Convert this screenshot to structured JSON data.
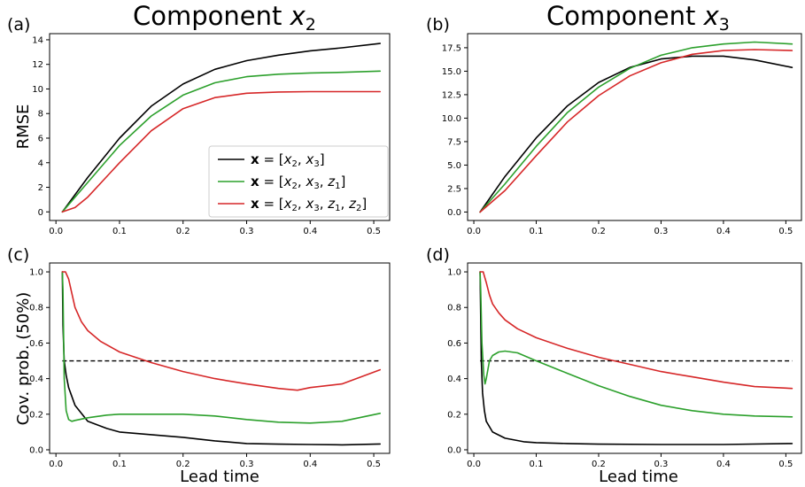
{
  "legend": {
    "entries": [
      {
        "label": "x = [x2, x3]",
        "color": "#000000"
      },
      {
        "label": "x = [x2, x3, z1]",
        "color": "#2ca02c"
      },
      {
        "label": "x = [x2, x3, z1, z2]",
        "color": "#d62728"
      }
    ]
  },
  "chart_data": [
    {
      "panel": "(a)",
      "type": "line",
      "title": "Component x2",
      "xlabel": "",
      "ylabel": "RMSE",
      "xlim": [
        -0.01,
        0.525
      ],
      "ylim": [
        -0.7,
        14.5
      ],
      "xticks": [
        0.0,
        0.1,
        0.2,
        0.3,
        0.4,
        0.5
      ],
      "xtick_labels": [
        "0.0",
        "0.1",
        "0.2",
        "0.3",
        "0.4",
        "0.5"
      ],
      "yticks": [
        0,
        2,
        4,
        6,
        8,
        10,
        12,
        14
      ],
      "ytick_labels": [
        "0",
        "2",
        "4",
        "6",
        "8",
        "10",
        "12",
        "14"
      ],
      "legend": "lower right",
      "grid": false,
      "series": [
        {
          "name": "x = [x2, x3]",
          "color": "#000000",
          "x": [
            0.01,
            0.05,
            0.1,
            0.15,
            0.2,
            0.25,
            0.3,
            0.35,
            0.4,
            0.45,
            0.51
          ],
          "y": [
            0,
            2.8,
            6.0,
            8.6,
            10.4,
            11.6,
            12.3,
            12.75,
            13.1,
            13.35,
            13.7
          ]
        },
        {
          "name": "x = [x2, x3, z1]",
          "color": "#2ca02c",
          "x": [
            0.01,
            0.05,
            0.1,
            0.15,
            0.2,
            0.25,
            0.3,
            0.35,
            0.4,
            0.45,
            0.51
          ],
          "y": [
            0,
            2.4,
            5.4,
            7.8,
            9.5,
            10.5,
            11.0,
            11.2,
            11.3,
            11.35,
            11.45
          ]
        },
        {
          "name": "x = [x2, x3, z1, z2]",
          "color": "#d62728",
          "x": [
            0.01,
            0.03,
            0.05,
            0.1,
            0.15,
            0.2,
            0.25,
            0.3,
            0.35,
            0.4,
            0.45,
            0.51
          ],
          "y": [
            0,
            0.35,
            1.2,
            4.0,
            6.6,
            8.4,
            9.3,
            9.65,
            9.75,
            9.78,
            9.78,
            9.78
          ]
        }
      ]
    },
    {
      "panel": "(b)",
      "type": "line",
      "title": "Component x3",
      "xlabel": "",
      "ylabel": "",
      "xlim": [
        -0.01,
        0.525
      ],
      "ylim": [
        -0.9,
        19.0
      ],
      "xticks": [
        0.0,
        0.1,
        0.2,
        0.3,
        0.4,
        0.5
      ],
      "xtick_labels": [
        "0.0",
        "0.1",
        "0.2",
        "0.3",
        "0.4",
        "0.5"
      ],
      "yticks": [
        0,
        2.5,
        5,
        7.5,
        10,
        12.5,
        15,
        17.5
      ],
      "ytick_labels": [
        "0.0",
        "2.5",
        "5.0",
        "7.5",
        "10.0",
        "12.5",
        "15.0",
        "17.5"
      ],
      "grid": false,
      "series": [
        {
          "name": "x = [x2, x3]",
          "color": "#000000",
          "x": [
            0.01,
            0.05,
            0.1,
            0.15,
            0.2,
            0.25,
            0.3,
            0.35,
            0.4,
            0.45,
            0.51
          ],
          "y": [
            0,
            3.8,
            7.9,
            11.3,
            13.8,
            15.4,
            16.3,
            16.6,
            16.6,
            16.2,
            15.4
          ]
        },
        {
          "name": "x = [x2, x3, z1]",
          "color": "#2ca02c",
          "x": [
            0.01,
            0.05,
            0.1,
            0.15,
            0.2,
            0.25,
            0.3,
            0.35,
            0.4,
            0.45,
            0.51
          ],
          "y": [
            0,
            3.0,
            7.0,
            10.6,
            13.3,
            15.3,
            16.7,
            17.5,
            17.9,
            18.1,
            17.9
          ]
        },
        {
          "name": "x = [x2, x3, z1, z2]",
          "color": "#d62728",
          "x": [
            0.01,
            0.05,
            0.1,
            0.15,
            0.2,
            0.25,
            0.3,
            0.35,
            0.4,
            0.45,
            0.51
          ],
          "y": [
            0,
            2.3,
            6.0,
            9.6,
            12.4,
            14.5,
            15.9,
            16.8,
            17.2,
            17.3,
            17.2
          ]
        }
      ]
    },
    {
      "panel": "(c)",
      "type": "line",
      "title": "",
      "xlabel": "Lead time",
      "ylabel": "Cov. prob. (50%)",
      "xlim": [
        -0.01,
        0.525
      ],
      "ylim": [
        -0.02,
        1.05
      ],
      "xticks": [
        0.0,
        0.1,
        0.2,
        0.3,
        0.4,
        0.5
      ],
      "xtick_labels": [
        "0.0",
        "0.1",
        "0.2",
        "0.3",
        "0.4",
        "0.5"
      ],
      "yticks": [
        0.0,
        0.2,
        0.4,
        0.6,
        0.8,
        1.0
      ],
      "ytick_labels": [
        "0.0",
        "0.2",
        "0.4",
        "0.6",
        "0.8",
        "1.0"
      ],
      "reference_line": {
        "y": 0.5,
        "style": "dashed",
        "color": "#000000"
      },
      "grid": false,
      "series": [
        {
          "name": "x = [x2, x3]",
          "color": "#000000",
          "x": [
            0.01,
            0.011,
            0.013,
            0.016,
            0.02,
            0.03,
            0.05,
            0.08,
            0.1,
            0.15,
            0.2,
            0.25,
            0.3,
            0.35,
            0.4,
            0.45,
            0.51
          ],
          "y": [
            1.0,
            0.7,
            0.5,
            0.42,
            0.35,
            0.25,
            0.16,
            0.12,
            0.1,
            0.085,
            0.07,
            0.05,
            0.035,
            0.032,
            0.03,
            0.028,
            0.033
          ]
        },
        {
          "name": "x = [x2, x3, z1]",
          "color": "#2ca02c",
          "x": [
            0.01,
            0.011,
            0.013,
            0.016,
            0.02,
            0.025,
            0.03,
            0.05,
            0.08,
            0.1,
            0.15,
            0.2,
            0.25,
            0.3,
            0.35,
            0.4,
            0.45,
            0.51
          ],
          "y": [
            1.0,
            0.9,
            0.4,
            0.22,
            0.17,
            0.16,
            0.165,
            0.18,
            0.195,
            0.2,
            0.2,
            0.2,
            0.19,
            0.17,
            0.155,
            0.15,
            0.16,
            0.205
          ]
        },
        {
          "name": "x = [x2, x3, z1, z2]",
          "color": "#d62728",
          "x": [
            0.01,
            0.015,
            0.02,
            0.025,
            0.03,
            0.04,
            0.05,
            0.07,
            0.1,
            0.15,
            0.2,
            0.25,
            0.3,
            0.35,
            0.38,
            0.4,
            0.45,
            0.51
          ],
          "y": [
            1.0,
            1.0,
            0.96,
            0.88,
            0.8,
            0.72,
            0.67,
            0.61,
            0.55,
            0.49,
            0.44,
            0.4,
            0.37,
            0.345,
            0.335,
            0.35,
            0.37,
            0.45
          ]
        }
      ]
    },
    {
      "panel": "(d)",
      "type": "line",
      "title": "",
      "xlabel": "Lead time",
      "ylabel": "",
      "xlim": [
        -0.01,
        0.525
      ],
      "ylim": [
        -0.02,
        1.05
      ],
      "xticks": [
        0.0,
        0.1,
        0.2,
        0.3,
        0.4,
        0.5
      ],
      "xtick_labels": [
        "0.0",
        "0.1",
        "0.2",
        "0.3",
        "0.4",
        "0.5"
      ],
      "yticks": [
        0.0,
        0.2,
        0.4,
        0.6,
        0.8,
        1.0
      ],
      "ytick_labels": [
        "0.0",
        "0.2",
        "0.4",
        "0.6",
        "0.8",
        "1.0"
      ],
      "reference_line": {
        "y": 0.5,
        "style": "dashed",
        "color": "#000000"
      },
      "grid": false,
      "series": [
        {
          "name": "x = [x2, x3]",
          "color": "#000000",
          "x": [
            0.01,
            0.011,
            0.012,
            0.014,
            0.017,
            0.02,
            0.03,
            0.05,
            0.08,
            0.1,
            0.15,
            0.2,
            0.3,
            0.4,
            0.51
          ],
          "y": [
            1.0,
            0.75,
            0.5,
            0.32,
            0.22,
            0.16,
            0.1,
            0.065,
            0.045,
            0.04,
            0.035,
            0.032,
            0.03,
            0.03,
            0.035
          ]
        },
        {
          "name": "x = [x2, x3, z1]",
          "color": "#2ca02c",
          "x": [
            0.01,
            0.011,
            0.013,
            0.016,
            0.018,
            0.02,
            0.025,
            0.03,
            0.04,
            0.05,
            0.07,
            0.1,
            0.15,
            0.2,
            0.25,
            0.3,
            0.35,
            0.4,
            0.45,
            0.51
          ],
          "y": [
            1.0,
            0.9,
            0.6,
            0.42,
            0.37,
            0.4,
            0.5,
            0.53,
            0.55,
            0.555,
            0.545,
            0.5,
            0.43,
            0.36,
            0.3,
            0.25,
            0.22,
            0.2,
            0.19,
            0.185
          ]
        },
        {
          "name": "x = [x2, x3, z1, z2]",
          "color": "#d62728",
          "x": [
            0.01,
            0.015,
            0.02,
            0.025,
            0.03,
            0.04,
            0.05,
            0.07,
            0.1,
            0.15,
            0.2,
            0.25,
            0.3,
            0.35,
            0.4,
            0.45,
            0.51
          ],
          "y": [
            1.0,
            1.0,
            0.94,
            0.87,
            0.82,
            0.77,
            0.73,
            0.68,
            0.63,
            0.57,
            0.52,
            0.48,
            0.44,
            0.41,
            0.38,
            0.355,
            0.345
          ]
        }
      ]
    }
  ]
}
